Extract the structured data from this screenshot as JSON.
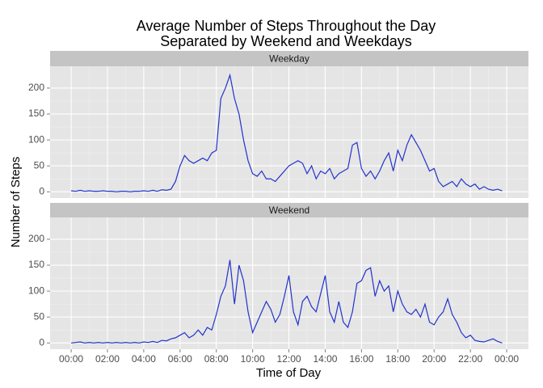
{
  "chart_data": {
    "type": "line",
    "title": [
      "Average Number of Steps Throughout the Day",
      "Separated by Weekend and Weekdays"
    ],
    "x_label": "Time of Day",
    "y_label": "Number of Steps",
    "x": [
      0,
      0.25,
      0.5,
      0.75,
      1,
      1.25,
      1.5,
      1.75,
      2,
      2.25,
      2.5,
      2.75,
      3,
      3.25,
      3.5,
      3.75,
      4,
      4.25,
      4.5,
      4.75,
      5,
      5.25,
      5.5,
      5.75,
      6,
      6.25,
      6.5,
      6.75,
      7,
      7.25,
      7.5,
      7.75,
      8,
      8.25,
      8.5,
      8.75,
      9,
      9.25,
      9.5,
      9.75,
      10,
      10.25,
      10.5,
      10.75,
      11,
      11.25,
      11.5,
      11.75,
      12,
      12.25,
      12.5,
      12.75,
      13,
      13.25,
      13.5,
      13.75,
      14,
      14.25,
      14.5,
      14.75,
      15,
      15.25,
      15.5,
      15.75,
      16,
      16.25,
      16.5,
      16.75,
      17,
      17.25,
      17.5,
      17.75,
      18,
      18.25,
      18.5,
      18.75,
      19,
      19.25,
      19.5,
      19.75,
      20,
      20.25,
      20.5,
      20.75,
      21,
      21.25,
      21.5,
      21.75,
      22,
      22.25,
      22.5,
      22.75,
      23,
      23.25,
      23.5,
      23.75
    ],
    "xlim": [
      -1.16,
      25.2
    ],
    "xticks": [
      {
        "value": 0,
        "label": "00:00"
      },
      {
        "value": 2,
        "label": "02:00"
      },
      {
        "value": 4,
        "label": "04:00"
      },
      {
        "value": 6,
        "label": "06:00"
      },
      {
        "value": 8,
        "label": "08:00"
      },
      {
        "value": 10,
        "label": "10:00"
      },
      {
        "value": 12,
        "label": "12:00"
      },
      {
        "value": 14,
        "label": "14:00"
      },
      {
        "value": 16,
        "label": "16:00"
      },
      {
        "value": 18,
        "label": "18:00"
      },
      {
        "value": 20,
        "label": "20:00"
      },
      {
        "value": 22,
        "label": "22:00"
      },
      {
        "value": 24,
        "label": "00:00"
      }
    ],
    "ylim": [
      -12,
      242
    ],
    "yticks": [
      0,
      50,
      100,
      150,
      200
    ],
    "grid": true,
    "series": [
      {
        "name": "Weekday",
        "color": "#2233cc",
        "values": [
          2,
          1,
          3,
          1,
          2,
          1,
          1,
          2,
          1,
          1,
          0,
          1,
          1,
          0,
          1,
          1,
          2,
          1,
          3,
          1,
          4,
          3,
          5,
          20,
          50,
          70,
          60,
          55,
          60,
          65,
          60,
          75,
          80,
          180,
          200,
          225,
          180,
          150,
          100,
          60,
          35,
          30,
          40,
          25,
          25,
          20,
          30,
          40,
          50,
          55,
          60,
          55,
          35,
          50,
          25,
          40,
          35,
          45,
          25,
          35,
          40,
          45,
          90,
          95,
          45,
          30,
          40,
          25,
          40,
          60,
          75,
          40,
          80,
          60,
          90,
          110,
          95,
          80,
          60,
          40,
          45,
          20,
          10,
          15,
          20,
          10,
          25,
          15,
          10,
          15,
          5,
          10,
          5,
          3,
          5,
          2
        ]
      },
      {
        "name": "Weekend",
        "color": "#2233cc",
        "values": [
          0,
          1,
          2,
          0,
          1,
          0,
          1,
          0,
          1,
          0,
          1,
          0,
          1,
          0,
          1,
          0,
          2,
          1,
          3,
          1,
          5,
          4,
          8,
          10,
          15,
          20,
          10,
          15,
          25,
          15,
          30,
          25,
          55,
          90,
          110,
          160,
          75,
          150,
          120,
          60,
          20,
          40,
          60,
          80,
          65,
          40,
          55,
          90,
          130,
          60,
          35,
          80,
          90,
          70,
          60,
          95,
          130,
          60,
          40,
          80,
          40,
          30,
          60,
          115,
          120,
          140,
          145,
          90,
          120,
          100,
          110,
          60,
          100,
          75,
          60,
          55,
          65,
          50,
          75,
          40,
          35,
          50,
          60,
          85,
          55,
          40,
          20,
          10,
          15,
          5,
          3,
          2,
          5,
          8,
          3,
          0
        ]
      }
    ]
  }
}
